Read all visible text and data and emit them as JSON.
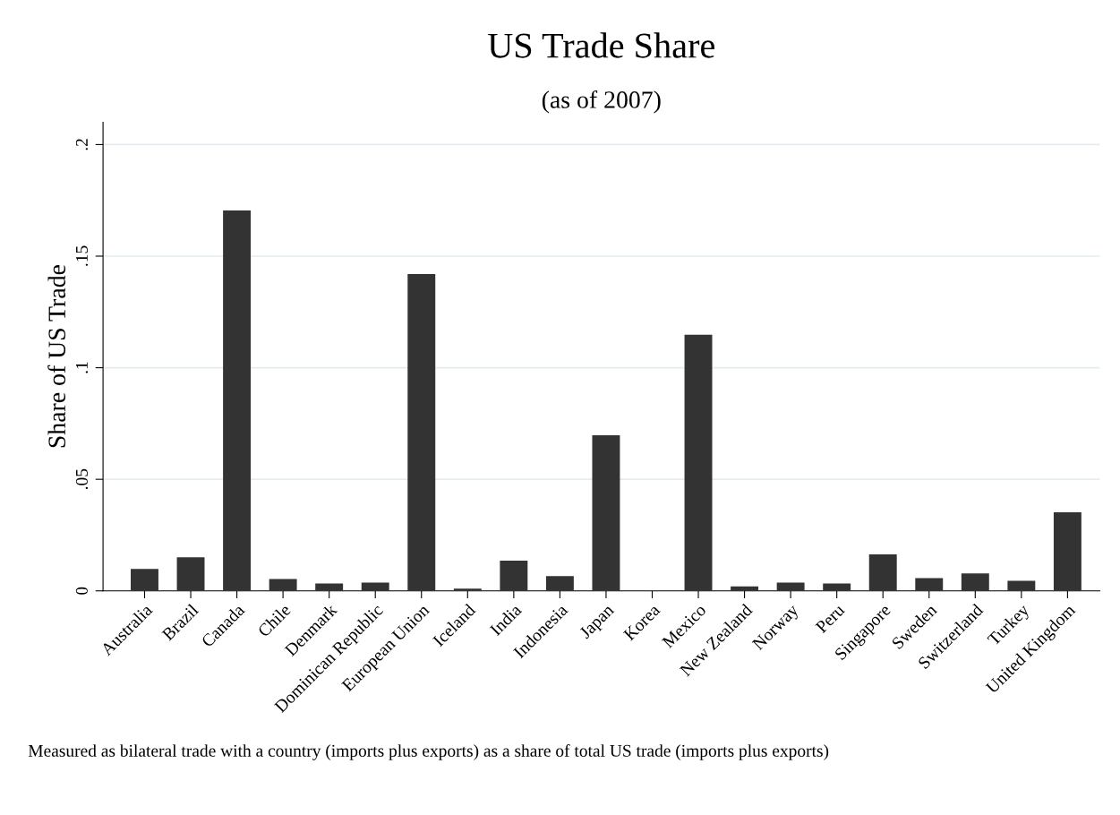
{
  "chart_data": {
    "type": "bar",
    "title": "US Trade Share",
    "subtitle": "(as of 2007)",
    "ylabel": "Share of US Trade",
    "categories": [
      "Australia",
      "Brazil",
      "Canada",
      "Chile",
      "Denmark",
      "Dominican Republic",
      "European Union",
      "Iceland",
      "India",
      "Indonesia",
      "Japan",
      "Korea",
      "Mexico",
      "New Zealand",
      "Norway",
      "Peru",
      "Singapore",
      "Sweden",
      "Switzerland",
      "Turkey",
      "United Kingdom"
    ],
    "values": [
      0.0098,
      0.015,
      0.1705,
      0.0053,
      0.0033,
      0.0037,
      0.142,
      0.001,
      0.0135,
      0.0066,
      0.0697,
      0,
      0.1148,
      0.002,
      0.0037,
      0.0033,
      0.0164,
      0.0057,
      0.0078,
      0.0045,
      0.0352
    ],
    "color": "#333333",
    "ylim": [
      0,
      0.21
    ],
    "yticks": [
      {
        "value": 0,
        "label": "0"
      },
      {
        "value": 0.05,
        "label": ".05"
      },
      {
        "value": 0.1,
        "label": ".1"
      },
      {
        "value": 0.15,
        "label": ".15"
      },
      {
        "value": 0.2,
        "label": ".2"
      }
    ],
    "grid": "y",
    "annotations": [
      "Measured as bilateral trade with a country (imports plus exports) as a share of total US trade (imports plus exports)"
    ]
  }
}
